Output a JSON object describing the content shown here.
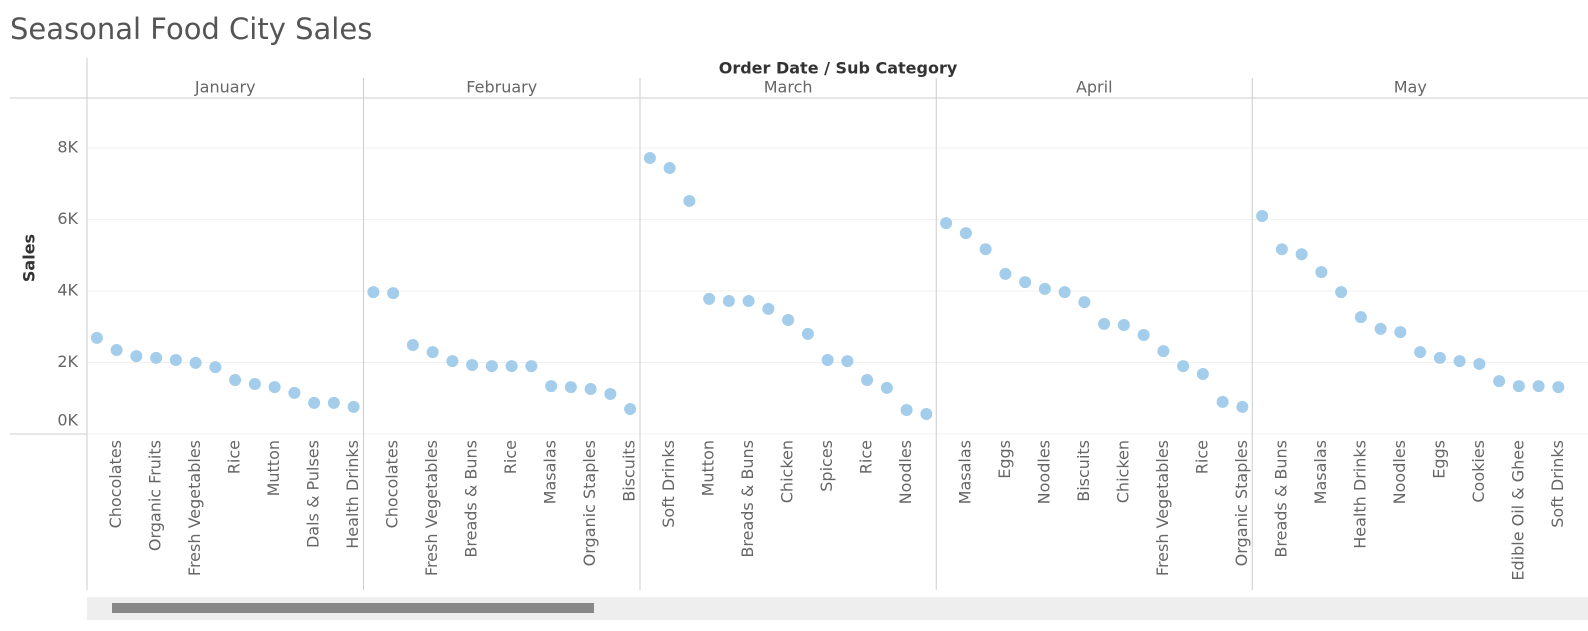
{
  "chart_data": {
    "type": "dot",
    "title": "Seasonal Food City Sales",
    "header": "Order Date / Sub Category",
    "y_label": "Sales",
    "color": "#9ecae9",
    "ylim": [
      0,
      9400
    ],
    "yticks": [
      {
        "value": 0,
        "label": "0K"
      },
      {
        "value": 2000,
        "label": "2K"
      },
      {
        "value": 4000,
        "label": "4K"
      },
      {
        "value": 6000,
        "label": "6K"
      },
      {
        "value": 8000,
        "label": "8K"
      }
    ],
    "grid": true,
    "panels": [
      {
        "name": "January",
        "categories": [
          null,
          "Chocolates",
          null,
          "Organic Fruits",
          null,
          "Fresh Vegetables",
          null,
          "Rice",
          null,
          "Mutton",
          null,
          "Dals & Pulses",
          null,
          "Health Drinks"
        ],
        "values": [
          2690,
          2350,
          2180,
          2130,
          2070,
          1990,
          1870,
          1510,
          1400,
          1310,
          1150,
          870,
          870,
          760
        ]
      },
      {
        "name": "February",
        "categories": [
          null,
          "Chocolates",
          null,
          "Fresh Vegetables",
          null,
          "Breads & Buns",
          null,
          "Rice",
          null,
          "Masalas",
          null,
          "Organic Staples",
          null,
          "Biscuits"
        ],
        "values": [
          3970,
          3940,
          2490,
          2290,
          2040,
          1930,
          1900,
          1900,
          1900,
          1340,
          1310,
          1260,
          1120,
          700
        ]
      },
      {
        "name": "March",
        "categories": [
          null,
          "Soft Drinks",
          null,
          "Mutton",
          null,
          "Breads & Buns",
          null,
          "Chicken",
          null,
          "Spices",
          null,
          "Rice",
          null,
          "Noodles",
          null
        ],
        "values": [
          7720,
          7440,
          6520,
          3780,
          3720,
          3720,
          3500,
          3190,
          2800,
          2070,
          2040,
          1510,
          1290,
          670,
          560
        ]
      },
      {
        "name": "April",
        "categories": [
          null,
          "Masalas",
          null,
          "Eggs",
          null,
          "Noodles",
          null,
          "Biscuits",
          null,
          "Chicken",
          null,
          "Fresh Vegetables",
          null,
          "Rice",
          null,
          "Organic Staples"
        ],
        "values": [
          5900,
          5620,
          5170,
          4480,
          4250,
          4060,
          3970,
          3690,
          3080,
          3050,
          2770,
          2320,
          1900,
          1680,
          900,
          760
        ]
      },
      {
        "name": "May",
        "categories": [
          null,
          "Breads & Buns",
          null,
          "Masalas",
          null,
          "Health Drinks",
          null,
          "Noodles",
          null,
          "Eggs",
          null,
          "Cookies",
          null,
          "Edible Oil & Ghee",
          null,
          "Soft Drinks"
        ],
        "values": [
          6100,
          5170,
          5030,
          4530,
          3970,
          3270,
          2940,
          2850,
          2290,
          2130,
          2040,
          1960,
          1480,
          1340,
          1340,
          1310
        ]
      }
    ]
  }
}
